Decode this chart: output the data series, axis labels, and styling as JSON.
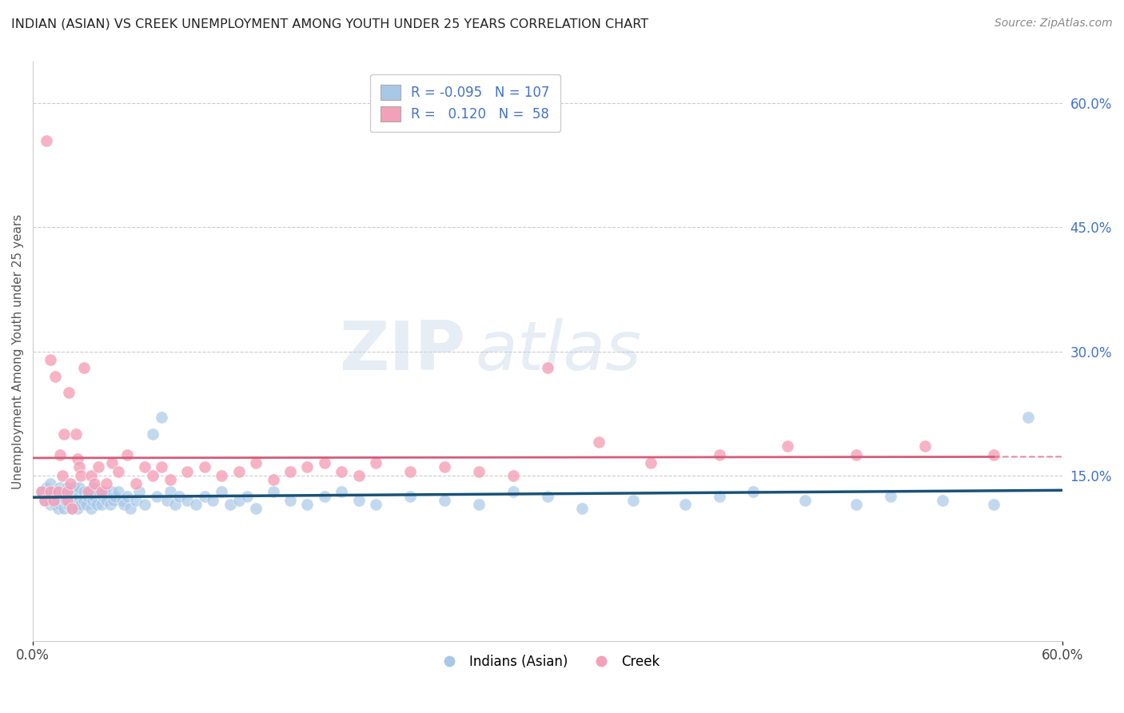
{
  "title": "INDIAN (ASIAN) VS CREEK UNEMPLOYMENT AMONG YOUTH UNDER 25 YEARS CORRELATION CHART",
  "source": "Source: ZipAtlas.com",
  "ylabel": "Unemployment Among Youth under 25 years",
  "xlim": [
    0.0,
    0.6
  ],
  "ylim": [
    -0.05,
    0.65
  ],
  "xticks": [
    0.0,
    0.6
  ],
  "xticklabels": [
    "0.0%",
    "60.0%"
  ],
  "yticks_right": [
    0.15,
    0.3,
    0.45,
    0.6
  ],
  "yticklabels_right": [
    "15.0%",
    "30.0%",
    "45.0%",
    "60.0%"
  ],
  "blue_color": "#a8c8e8",
  "pink_color": "#f4a0b8",
  "blue_line_color": "#1a5276",
  "pink_line_color": "#d45c7a",
  "watermark_zip": "ZIP",
  "watermark_atlas": "atlas",
  "indian_x": [
    0.005,
    0.007,
    0.008,
    0.009,
    0.01,
    0.01,
    0.01,
    0.01,
    0.01,
    0.012,
    0.013,
    0.014,
    0.015,
    0.015,
    0.015,
    0.016,
    0.016,
    0.017,
    0.018,
    0.018,
    0.019,
    0.02,
    0.02,
    0.02,
    0.02,
    0.021,
    0.021,
    0.022,
    0.022,
    0.023,
    0.024,
    0.024,
    0.025,
    0.025,
    0.025,
    0.026,
    0.026,
    0.027,
    0.027,
    0.028,
    0.03,
    0.03,
    0.031,
    0.032,
    0.033,
    0.034,
    0.035,
    0.035,
    0.036,
    0.037,
    0.038,
    0.04,
    0.041,
    0.042,
    0.043,
    0.045,
    0.046,
    0.047,
    0.048,
    0.05,
    0.052,
    0.053,
    0.055,
    0.057,
    0.06,
    0.062,
    0.065,
    0.07,
    0.072,
    0.075,
    0.078,
    0.08,
    0.083,
    0.085,
    0.09,
    0.095,
    0.1,
    0.105,
    0.11,
    0.115,
    0.12,
    0.125,
    0.13,
    0.14,
    0.15,
    0.16,
    0.17,
    0.18,
    0.19,
    0.2,
    0.22,
    0.24,
    0.26,
    0.28,
    0.3,
    0.32,
    0.35,
    0.38,
    0.4,
    0.42,
    0.45,
    0.48,
    0.5,
    0.53,
    0.56,
    0.58
  ],
  "indian_y": [
    0.13,
    0.12,
    0.135,
    0.125,
    0.115,
    0.13,
    0.14,
    0.125,
    0.12,
    0.13,
    0.115,
    0.125,
    0.11,
    0.13,
    0.12,
    0.135,
    0.115,
    0.125,
    0.13,
    0.11,
    0.12,
    0.135,
    0.115,
    0.125,
    0.13,
    0.12,
    0.115,
    0.13,
    0.125,
    0.11,
    0.135,
    0.12,
    0.125,
    0.115,
    0.13,
    0.12,
    0.11,
    0.125,
    0.135,
    0.115,
    0.13,
    0.12,
    0.115,
    0.125,
    0.13,
    0.11,
    0.135,
    0.12,
    0.125,
    0.115,
    0.13,
    0.115,
    0.125,
    0.13,
    0.12,
    0.115,
    0.13,
    0.12,
    0.125,
    0.13,
    0.12,
    0.115,
    0.125,
    0.11,
    0.12,
    0.13,
    0.115,
    0.2,
    0.125,
    0.22,
    0.12,
    0.13,
    0.115,
    0.125,
    0.12,
    0.115,
    0.125,
    0.12,
    0.13,
    0.115,
    0.12,
    0.125,
    0.11,
    0.13,
    0.12,
    0.115,
    0.125,
    0.13,
    0.12,
    0.115,
    0.125,
    0.12,
    0.115,
    0.13,
    0.125,
    0.11,
    0.12,
    0.115,
    0.125,
    0.13,
    0.12,
    0.115,
    0.125,
    0.12,
    0.115,
    0.22
  ],
  "creek_x": [
    0.005,
    0.007,
    0.008,
    0.01,
    0.01,
    0.012,
    0.013,
    0.015,
    0.016,
    0.017,
    0.018,
    0.02,
    0.02,
    0.021,
    0.022,
    0.023,
    0.025,
    0.026,
    0.027,
    0.028,
    0.03,
    0.032,
    0.034,
    0.036,
    0.038,
    0.04,
    0.043,
    0.046,
    0.05,
    0.055,
    0.06,
    0.065,
    0.07,
    0.075,
    0.08,
    0.09,
    0.1,
    0.11,
    0.12,
    0.13,
    0.14,
    0.15,
    0.16,
    0.17,
    0.18,
    0.19,
    0.2,
    0.22,
    0.24,
    0.26,
    0.28,
    0.3,
    0.33,
    0.36,
    0.4,
    0.44,
    0.48,
    0.52,
    0.56
  ],
  "creek_y": [
    0.13,
    0.12,
    0.555,
    0.29,
    0.13,
    0.12,
    0.27,
    0.13,
    0.175,
    0.15,
    0.2,
    0.12,
    0.13,
    0.25,
    0.14,
    0.11,
    0.2,
    0.17,
    0.16,
    0.15,
    0.28,
    0.13,
    0.15,
    0.14,
    0.16,
    0.13,
    0.14,
    0.165,
    0.155,
    0.175,
    0.14,
    0.16,
    0.15,
    0.16,
    0.145,
    0.155,
    0.16,
    0.15,
    0.155,
    0.165,
    0.145,
    0.155,
    0.16,
    0.165,
    0.155,
    0.15,
    0.165,
    0.155,
    0.16,
    0.155,
    0.15,
    0.28,
    0.19,
    0.165,
    0.175,
    0.185,
    0.175,
    0.185,
    0.175
  ]
}
